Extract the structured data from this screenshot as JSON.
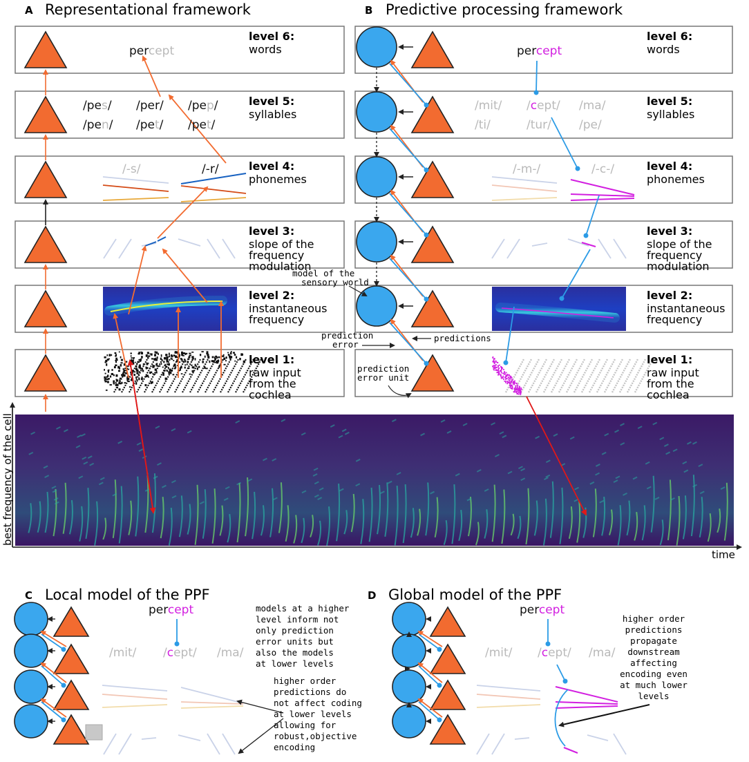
{
  "colors": {
    "triangle": "#f26b30",
    "circle": "#3aa7ee",
    "magenta": "#d21fe0",
    "grey_text": "#b9b9b9",
    "arrow_orange": "#f26b30",
    "arrow_blue": "#2b9be6",
    "arrow_red": "#e01818",
    "spectro_bg": "#3a1163"
  },
  "panels": {
    "A": {
      "letter": "A",
      "title": "Representational framework"
    },
    "B": {
      "letter": "B",
      "title": "Predictive processing framework"
    },
    "C": {
      "letter": "C",
      "title": "Local model of the PPF"
    },
    "D": {
      "letter": "D",
      "title": "Global model of the PPF"
    }
  },
  "levels": [
    {
      "name": "level 6",
      "desc": [
        "words"
      ]
    },
    {
      "name": "level 5",
      "desc": [
        "syllables"
      ]
    },
    {
      "name": "level 4",
      "desc": [
        "phonemes"
      ]
    },
    {
      "name": "level 3",
      "desc": [
        "slope of the",
        "frequency",
        "modulation"
      ]
    },
    {
      "name": "level 2",
      "desc": [
        "instantaneous",
        "frequency"
      ]
    },
    {
      "name": "level 1",
      "desc": [
        "raw input",
        "from the",
        "cochlea"
      ]
    }
  ],
  "words": {
    "A": {
      "dark": "per",
      "light": "cept"
    },
    "B": {
      "dark": "per",
      "light": "cept"
    },
    "C": {
      "dark": "per",
      "light": "cept"
    },
    "D": {
      "dark": "per",
      "light": "cept"
    }
  },
  "syllables_A": [
    {
      "pre": "/pe",
      "hl": "s",
      "post": "/"
    },
    {
      "pre": "/per/",
      "hl": "",
      "post": ""
    },
    {
      "pre": "/pe",
      "hl": "p",
      "post": "/"
    },
    {
      "pre": "/pe",
      "hl": "n",
      "post": "/"
    },
    {
      "pre": "/pe",
      "hl": "t",
      "post": "/"
    },
    {
      "pre": "/pe",
      "hl": "t",
      "post": "/"
    }
  ],
  "syllables_B": {
    "mit": "/mit/",
    "ti": "/ti/",
    "cept_pre": "/",
    "cept_c": "c",
    "cept_post": "ept/",
    "ma": "/ma/",
    "tur": "/tur/",
    "pe": "/pe/"
  },
  "syllables_CD": {
    "mit": "/mit/",
    "cept_pre": "/",
    "cept_c": "c",
    "cept_post": "ept/",
    "ma": "/ma/"
  },
  "phonemes_A": {
    "s": "/-s/",
    "r": "/-r/"
  },
  "phonemes_B": {
    "m": "/-m-/",
    "c": "/-c-/"
  },
  "annotations": {
    "model": [
      "model of the",
      "sensory world"
    ],
    "prediction_error": [
      "prediction",
      "error"
    ],
    "predictions": "predictions",
    "prediction_error_unit": [
      "prediction",
      "error unit"
    ],
    "note_models": [
      "models at a higher",
      "level inform not",
      "only prediction",
      "error units but",
      "also the models",
      "at lower levels"
    ],
    "note_local": [
      "higher order",
      "predictions do",
      "not affect coding",
      "at lower levels",
      "allowing for",
      "robust,objective",
      "encoding"
    ],
    "note_global": [
      "higher order",
      "predictions",
      "propagate",
      "downstream",
      "affecting",
      "encoding even",
      "at much lower",
      "levels"
    ]
  },
  "axes": {
    "y": "best frequency of the cell",
    "x": "time"
  }
}
